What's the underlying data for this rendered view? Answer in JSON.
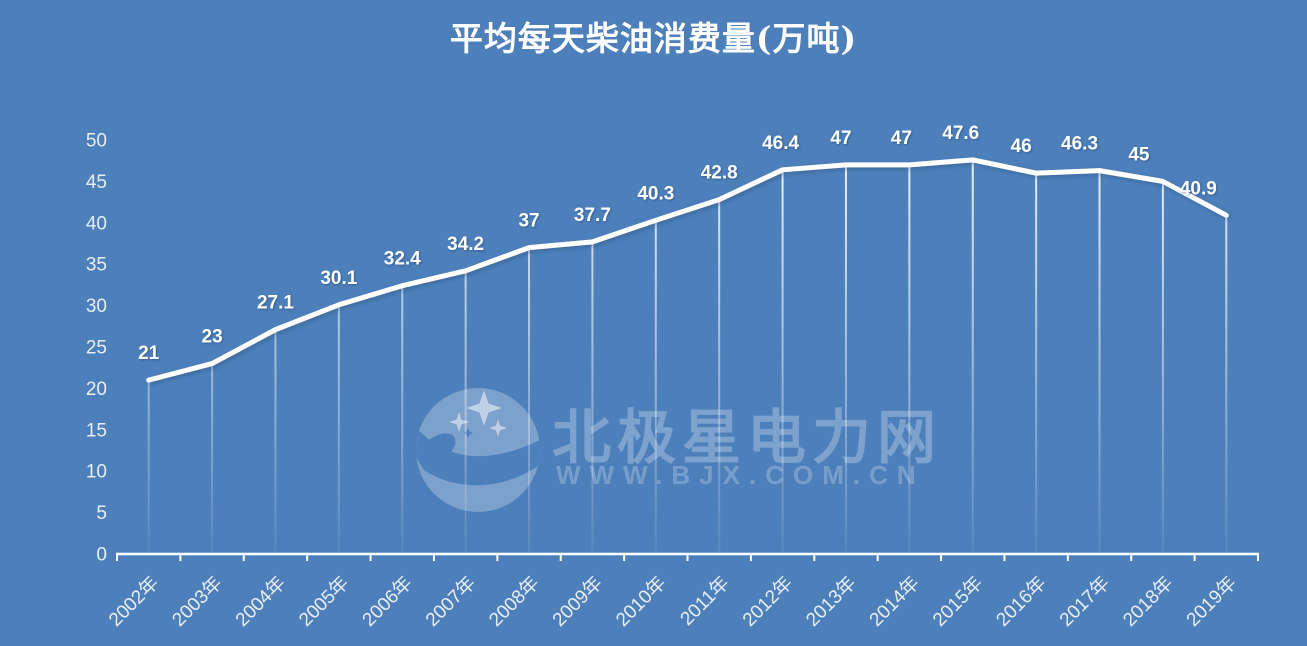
{
  "window": {
    "background_color": "#4d80bb"
  },
  "chart_data": {
    "type": "line",
    "title": "平均每天柴油消费量(万吨)",
    "categories": [
      "2002年",
      "2003年",
      "2004年",
      "2005年",
      "2006年",
      "2007年",
      "2008年",
      "2009年",
      "2010年",
      "2011年",
      "2012年",
      "2013年",
      "2014年",
      "2015年",
      "2016年",
      "2017年",
      "2018年",
      "2019年"
    ],
    "series": [
      {
        "name": "平均每天柴油消费量(万吨)",
        "values": [
          21,
          23,
          27.1,
          30.1,
          32.4,
          34.2,
          37,
          37.7,
          40.3,
          42.8,
          46.4,
          47,
          47,
          47.6,
          46,
          46.3,
          45,
          40.9
        ]
      }
    ],
    "ylim": [
      0,
      50
    ],
    "yticks": [
      0,
      5,
      10,
      15,
      20,
      25,
      30,
      35,
      40,
      45,
      50
    ],
    "grid": false,
    "legend_position": "none",
    "data_labels_shown": true,
    "droplines": true,
    "line_color": "#ffffff",
    "label_color": "#ffffff",
    "axis_color": "#ffffff",
    "axis_text_color": "#e8eef6",
    "background_color": "#4d80bb"
  },
  "watermark": {
    "logo": "crescent-moon-with-stars",
    "brand_text": "北极星电力网",
    "site_url": "WWW.BJX.COM.CN"
  }
}
